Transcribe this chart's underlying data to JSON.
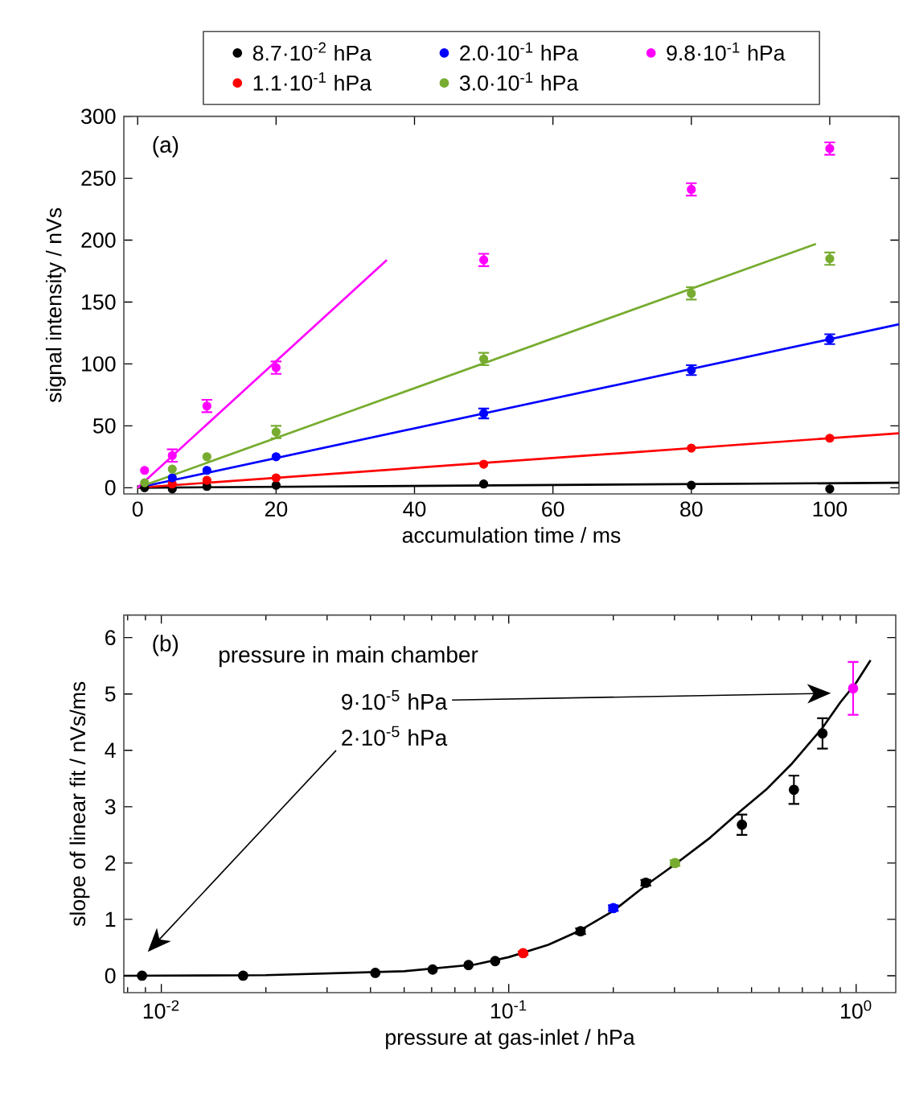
{
  "chart_data": [
    {
      "type": "scatter",
      "xlabel": "accumulation time / ms",
      "ylabel": "signal intensity / nVs",
      "annotations": [
        "(a)"
      ],
      "xlim": [
        -2,
        110
      ],
      "ylim": [
        -5,
        300
      ],
      "xticks": [
        0,
        20,
        40,
        60,
        80,
        100
      ],
      "yticks": [
        0,
        50,
        100,
        150,
        200,
        250,
        300
      ],
      "legend": "top",
      "series": [
        {
          "name": "8.7·10$^{-2}$ hPa",
          "marker": "circle",
          "color": "#000000",
          "x": [
            1,
            5,
            10,
            20,
            50,
            80,
            100
          ],
          "values": [
            0,
            -1,
            1,
            2,
            3,
            2,
            -1
          ]
        },
        {
          "name": "1.1·10$^{-1}$ hPa",
          "marker": "circle",
          "color": "#ff0000",
          "x": [
            5,
            10,
            20,
            50,
            80,
            100
          ],
          "values": [
            3,
            6,
            8,
            19,
            32,
            40
          ]
        },
        {
          "name": "2.0·10$^{-1}$ hPa",
          "marker": "circle",
          "color": "#0000ff",
          "x": [
            5,
            10,
            20,
            50,
            80,
            100
          ],
          "values": [
            8,
            14,
            25,
            60,
            95,
            120
          ],
          "errors": [
            null,
            null,
            null,
            4,
            4,
            4
          ]
        },
        {
          "name": "3.0·10$^{-1}$ hPa",
          "marker": "circle",
          "color": "#77ac30",
          "x": [
            1,
            5,
            10,
            20,
            50,
            80,
            100
          ],
          "values": [
            4,
            15,
            25,
            45,
            104,
            157,
            185
          ],
          "errors": [
            null,
            null,
            null,
            5,
            5,
            5,
            5
          ]
        },
        {
          "name": "9.8·10$^{-1}$ hPa",
          "marker": "circle",
          "color": "#ff00ff",
          "x": [
            1,
            5,
            10,
            20,
            50,
            80,
            100
          ],
          "values": [
            14,
            26,
            66,
            97,
            184,
            241,
            274
          ],
          "errors": [
            null,
            5,
            5,
            5,
            5,
            5,
            5
          ]
        },
        {
          "type": "line",
          "marker": "none",
          "color": "#000000",
          "x": [
            0,
            110
          ],
          "values": [
            0,
            4
          ]
        },
        {
          "type": "line",
          "marker": "none",
          "color": "#ff0000",
          "x": [
            0,
            110
          ],
          "values": [
            0,
            44
          ]
        },
        {
          "type": "line",
          "marker": "none",
          "color": "#0000ff",
          "x": [
            0,
            110
          ],
          "values": [
            0,
            132
          ]
        },
        {
          "type": "line",
          "marker": "none",
          "color": "#77ac30",
          "x": [
            0,
            98
          ],
          "values": [
            0,
            197
          ]
        },
        {
          "type": "line",
          "marker": "none",
          "color": "#ff00ff",
          "x": [
            0,
            36
          ],
          "values": [
            0,
            184
          ]
        }
      ]
    },
    {
      "type": "scatter",
      "xlabel": "pressure at gas-inlet / hPa",
      "ylabel": "slope of linear fit / nVs/ms",
      "log": "x",
      "annotations": [
        "(b)",
        "pressure in main chamber",
        "9·10$^{-5}$ hPa",
        "2·10$^{-5}$ hPa"
      ],
      "xlim": [
        0.0078,
        1.3
      ],
      "ylim": [
        -0.3,
        6.4
      ],
      "xticks": [
        {
          "value": 0.008,
          "label": null
        },
        {
          "value": 0.009,
          "label": null
        },
        {
          "value": 0.01,
          "label": "10$^{-2}$"
        },
        {
          "value": 0.02,
          "label": null
        },
        {
          "value": 0.03,
          "label": null
        },
        {
          "value": 0.04,
          "label": null
        },
        {
          "value": 0.05,
          "label": null
        },
        {
          "value": 0.06,
          "label": null
        },
        {
          "value": 0.07,
          "label": null
        },
        {
          "value": 0.08,
          "label": null
        },
        {
          "value": 0.09,
          "label": null
        },
        {
          "value": 0.1,
          "label": "10$^{-1}$"
        },
        {
          "value": 0.2,
          "label": null
        },
        {
          "value": 0.3,
          "label": null
        },
        {
          "value": 0.4,
          "label": null
        },
        {
          "value": 0.5,
          "label": null
        },
        {
          "value": 0.6,
          "label": null
        },
        {
          "value": 0.7,
          "label": null
        },
        {
          "value": 0.8,
          "label": null
        },
        {
          "value": 0.9,
          "label": null
        },
        {
          "value": 1,
          "label": "10$^{0}$"
        }
      ],
      "yticks": [
        0,
        1,
        2,
        3,
        4,
        5,
        6
      ],
      "series": [
        {
          "marker": "circle",
          "x": [
            0.0088,
            0.0172,
            0.0413,
            0.0604,
            0.0766,
            0.0914,
            0.11,
            0.161,
            0.2,
            0.248,
            0.301,
            0.469,
            0.662,
            0.8,
            0.98
          ],
          "values": [
            0,
            0,
            0.05,
            0.11,
            0.19,
            0.26,
            0.4,
            0.79,
            1.2,
            1.65,
            2.0,
            2.68,
            3.3,
            4.3,
            5.1
          ],
          "errors": [
            null,
            null,
            null,
            null,
            null,
            null,
            0.03,
            0.05,
            0.05,
            0.05,
            0.05,
            0.18,
            0.25,
            0.27,
            0.47
          ],
          "colors": [
            "#000000",
            "#000000",
            "#000000",
            "#000000",
            "#000000",
            "#000000",
            "#ff0000",
            "#000000",
            "#0000ff",
            "#000000",
            "#77ac30",
            "#000000",
            "#000000",
            "#000000",
            "#ff00ff"
          ]
        },
        {
          "type": "line",
          "marker": "none",
          "color": "#000000",
          "x": [
            0.0078,
            0.02,
            0.05,
            0.08,
            0.1,
            0.13,
            0.16,
            0.2,
            0.25,
            0.3,
            0.38,
            0.45,
            0.55,
            0.65,
            0.8,
            0.9,
            1.0,
            1.1
          ],
          "values": [
            0,
            0.01,
            0.08,
            0.2,
            0.33,
            0.55,
            0.8,
            1.15,
            1.62,
            1.97,
            2.45,
            2.85,
            3.3,
            3.75,
            4.4,
            4.85,
            5.2,
            5.6
          ]
        }
      ]
    }
  ]
}
